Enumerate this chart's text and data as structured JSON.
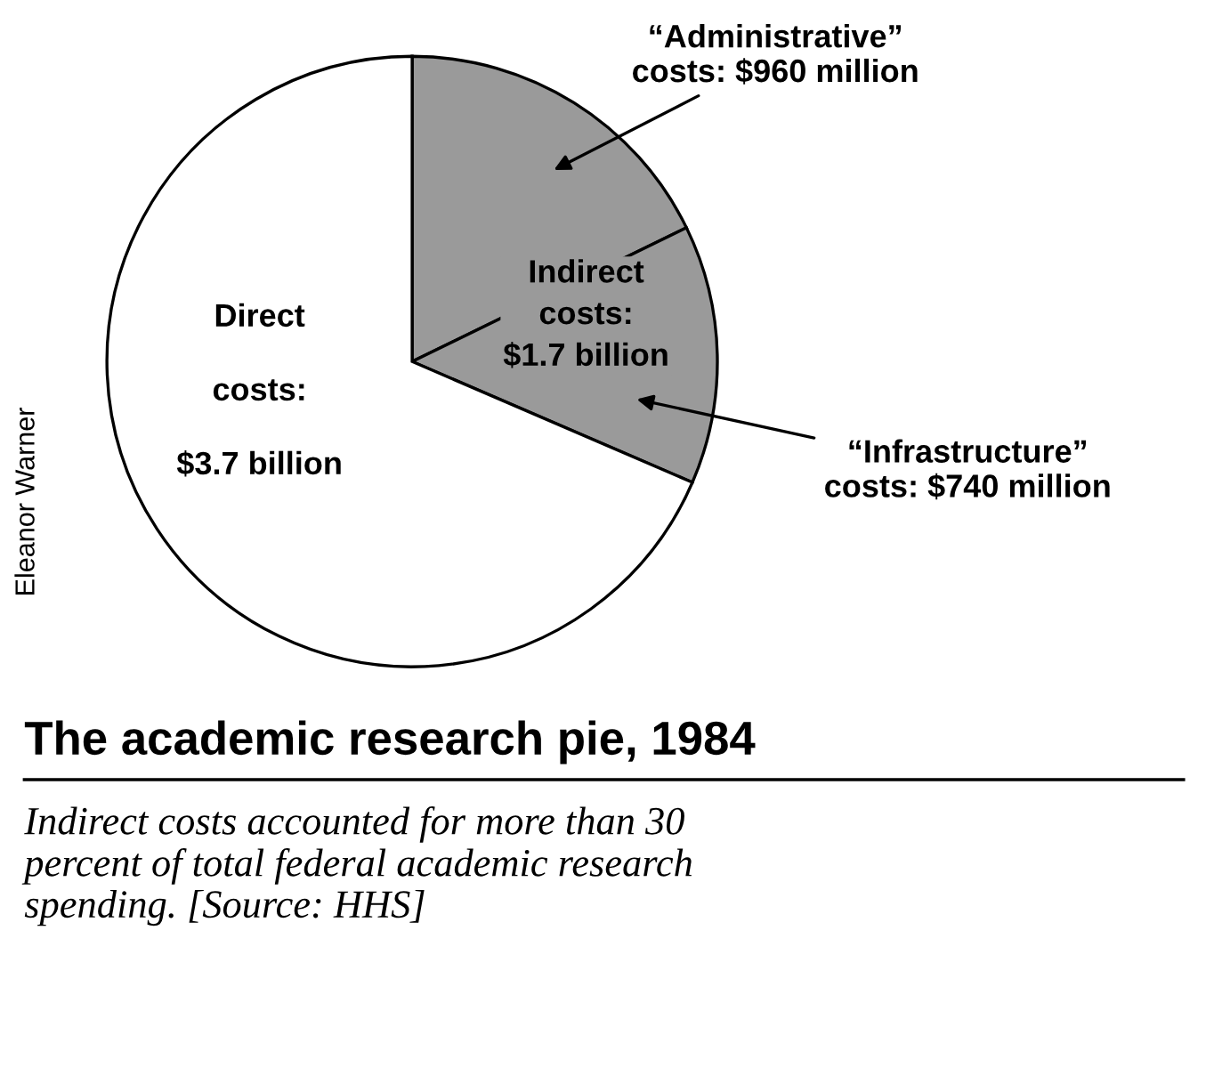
{
  "chart_data": {
    "type": "pie",
    "title": "The academic research pie, 1984",
    "subtitle": "Indirect costs accounted for more than 30\npercent of total federal academic research\nspending. [Source: HHS]",
    "categories": [
      "“Administrative”\ncosts: $960 million",
      "“Infrastructure”\ncosts: $740 million",
      "Direct\n\ncosts:\n\n$3.7 billion"
    ],
    "values": [
      960,
      740,
      3700
    ],
    "colors": [
      "#9a9a9a",
      "#9a9a9a",
      "#ffffff"
    ],
    "annotations": [
      "Indirect\ncosts:\n$1.7 billion",
      "Eleanor Warner"
    ]
  }
}
